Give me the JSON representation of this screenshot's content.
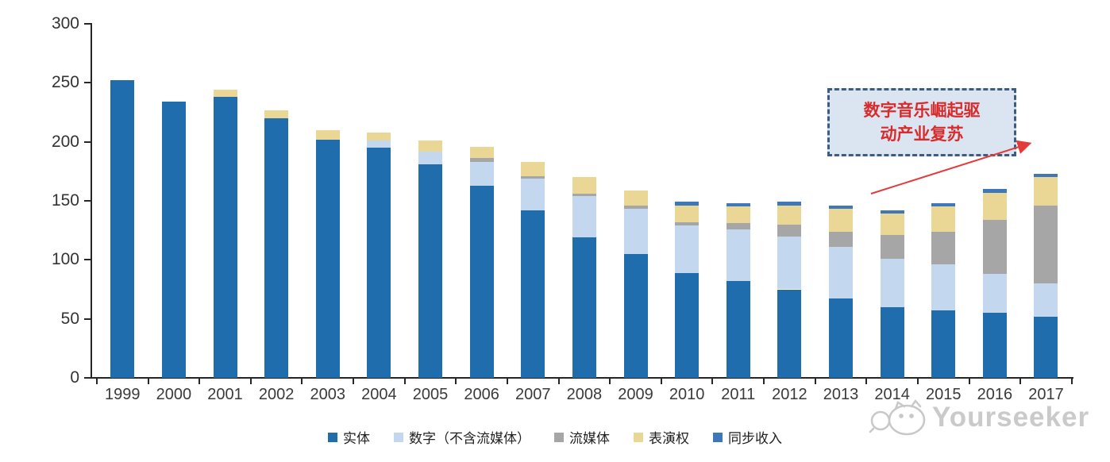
{
  "chart_data": {
    "type": "bar",
    "stacked": true,
    "title": "",
    "xlabel": "",
    "ylabel": "",
    "categories": [
      "1999",
      "2000",
      "2001",
      "2002",
      "2003",
      "2004",
      "2005",
      "2006",
      "2007",
      "2008",
      "2009",
      "2010",
      "2011",
      "2012",
      "2013",
      "2014",
      "2015",
      "2016",
      "2017"
    ],
    "series": [
      {
        "name": "实体",
        "color": "#1F6DAD",
        "values": [
          252,
          234,
          238,
          220,
          202,
          195,
          181,
          163,
          142,
          119,
          105,
          89,
          82,
          75,
          67,
          60,
          57,
          55,
          52
        ]
      },
      {
        "name": "数字（不含流媒体）",
        "color": "#C3D8EE",
        "values": [
          0,
          0,
          0,
          0,
          0,
          6,
          11,
          20,
          27,
          35,
          38,
          40,
          44,
          45,
          44,
          41,
          39,
          33,
          28
        ]
      },
      {
        "name": "流媒体",
        "color": "#A6A6A6",
        "values": [
          0,
          0,
          0,
          0,
          0,
          0,
          0,
          3,
          2,
          2,
          3,
          3,
          5,
          10,
          13,
          20,
          28,
          46,
          66
        ]
      },
      {
        "name": "表演权",
        "color": "#EAD795",
        "values": [
          0,
          0,
          6,
          7,
          8,
          7,
          9,
          10,
          12,
          14,
          13,
          14,
          14,
          16,
          19,
          18,
          21,
          23,
          24
        ]
      },
      {
        "name": "同步收入",
        "color": "#3E78B8",
        "values": [
          0,
          0,
          0,
          0,
          0,
          0,
          0,
          0,
          0,
          0,
          0,
          3,
          3,
          3,
          3,
          3,
          3,
          3,
          3
        ]
      }
    ],
    "totals": [
      252,
      234,
      244,
      227,
      210,
      208,
      201,
      196,
      183,
      170,
      159,
      149,
      148,
      149,
      146,
      142,
      148,
      160,
      173
    ],
    "ylim": [
      0,
      300
    ],
    "yticks": [
      0,
      50,
      100,
      150,
      200,
      250,
      300
    ],
    "grid": false,
    "legend_position": "bottom"
  },
  "annotation": {
    "line1": "数字音乐崛起驱",
    "line2": "动产业复苏",
    "text_color": "#D92B2B",
    "box_fill": "#DBE5F1",
    "box_border": "#3E5C7E",
    "arrow_color": "#E43A3A"
  },
  "watermark": {
    "text": "Yourseeker",
    "color": "#c8c8c8"
  },
  "axis": {
    "line_color": "#262626",
    "label_color": "#333333"
  }
}
